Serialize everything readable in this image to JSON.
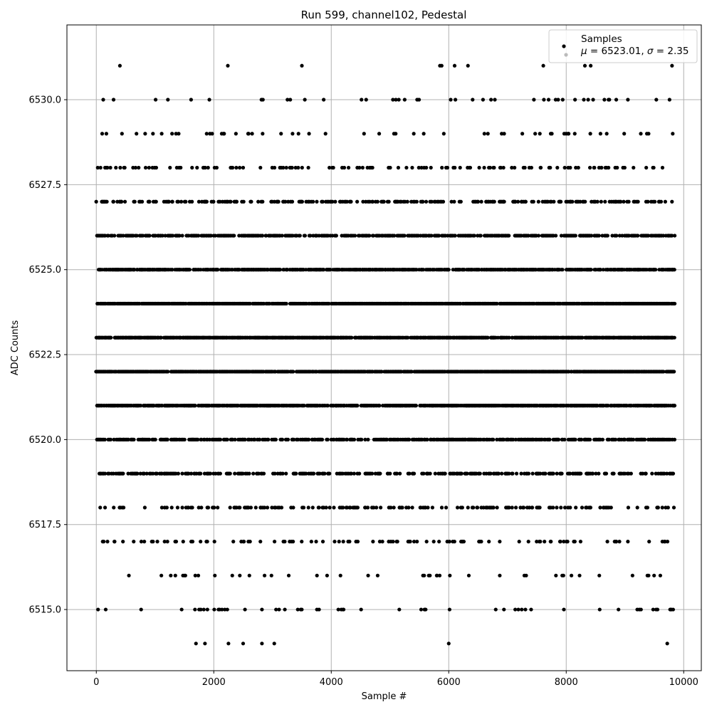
{
  "chart_data": {
    "type": "scatter",
    "title": "Run 599, channel102, Pedestal",
    "xlabel": "Sample #",
    "ylabel": "ADC Counts",
    "xlim": [
      -500,
      10300
    ],
    "ylim": [
      6513.2,
      6532.2
    ],
    "x_ticks": [
      0,
      2000,
      4000,
      6000,
      8000,
      10000
    ],
    "x_tick_labels": [
      "0",
      "2000",
      "4000",
      "6000",
      "8000",
      "10000"
    ],
    "y_ticks": [
      6515.0,
      6517.5,
      6520.0,
      6522.5,
      6525.0,
      6527.5,
      6530.0
    ],
    "y_tick_labels": [
      "6515.0",
      "6517.5",
      "6520.0",
      "6522.5",
      "6525.0",
      "6527.5",
      "6530.0"
    ],
    "grid": true,
    "legend_position": "top-right",
    "legend": {
      "series_label": "Samples",
      "stats_label_parts": [
        "μ",
        " = 6523.01, ",
        "σ",
        " = 2.35"
      ]
    },
    "series": [
      {
        "name": "Samples",
        "color": "#000000",
        "level_densities": [
          {
            "y": 6514,
            "fraction": 0.0012
          },
          {
            "y": 6515,
            "fraction": 0.0045
          },
          {
            "y": 6516,
            "fraction": 0.0085
          },
          {
            "y": 6517,
            "fraction": 0.017
          },
          {
            "y": 6518,
            "fraction": 0.035
          },
          {
            "y": 6519,
            "fraction": 0.06
          },
          {
            "y": 6520,
            "fraction": 0.1
          },
          {
            "y": 6521,
            "fraction": 0.135
          },
          {
            "y": 6522,
            "fraction": 0.16
          },
          {
            "y": 6523,
            "fraction": 0.165
          },
          {
            "y": 6524,
            "fraction": 0.16
          },
          {
            "y": 6525,
            "fraction": 0.13
          },
          {
            "y": 6526,
            "fraction": 0.09
          },
          {
            "y": 6527,
            "fraction": 0.05
          },
          {
            "y": 6528,
            "fraction": 0.025
          },
          {
            "y": 6529,
            "fraction": 0.01
          },
          {
            "y": 6530,
            "fraction": 0.0045
          },
          {
            "y": 6531,
            "fraction": 0.0012
          }
        ],
        "x_range": [
          0,
          9850
        ],
        "n_samples": 9850,
        "points": [
          {
            "x": 1850,
            "y": 6514
          },
          {
            "x": 2250,
            "y": 6514
          },
          {
            "x": 2500,
            "y": 6514
          },
          {
            "x": 2820,
            "y": 6514
          },
          {
            "x": 3030,
            "y": 6514
          },
          {
            "x": 6000,
            "y": 6514
          },
          {
            "x": 9720,
            "y": 6514
          },
          {
            "x": 3500,
            "y": 6531
          },
          {
            "x": 5850,
            "y": 6531
          },
          {
            "x": 5880,
            "y": 6531
          },
          {
            "x": 6100,
            "y": 6531
          },
          {
            "x": 7610,
            "y": 6531
          },
          {
            "x": 1010,
            "y": 6530
          },
          {
            "x": 3550,
            "y": 6530
          },
          {
            "x": 5050,
            "y": 6530
          },
          {
            "x": 5100,
            "y": 6530
          },
          {
            "x": 5150,
            "y": 6530
          },
          {
            "x": 5250,
            "y": 6530
          },
          {
            "x": 6720,
            "y": 6530
          },
          {
            "x": 7450,
            "y": 6530
          },
          {
            "x": 7620,
            "y": 6530
          },
          {
            "x": 7700,
            "y": 6530
          },
          {
            "x": 7820,
            "y": 6530
          },
          {
            "x": 7940,
            "y": 6530
          },
          {
            "x": 8150,
            "y": 6530
          },
          {
            "x": 8300,
            "y": 6530
          },
          {
            "x": 8650,
            "y": 6530
          },
          {
            "x": 8720,
            "y": 6530
          },
          {
            "x": 9050,
            "y": 6530
          },
          {
            "x": 30,
            "y": 6515
          },
          {
            "x": 160,
            "y": 6515
          },
          {
            "x": 1680,
            "y": 6515
          },
          {
            "x": 1750,
            "y": 6515
          },
          {
            "x": 1830,
            "y": 6515
          },
          {
            "x": 2080,
            "y": 6515
          },
          {
            "x": 2140,
            "y": 6515
          },
          {
            "x": 2230,
            "y": 6515
          },
          {
            "x": 2820,
            "y": 6515
          },
          {
            "x": 3060,
            "y": 6515
          },
          {
            "x": 3210,
            "y": 6515
          },
          {
            "x": 3430,
            "y": 6515
          },
          {
            "x": 3480,
            "y": 6515
          },
          {
            "x": 4170,
            "y": 6515
          },
          {
            "x": 4210,
            "y": 6515
          },
          {
            "x": 5530,
            "y": 6515
          },
          {
            "x": 6800,
            "y": 6515
          },
          {
            "x": 6940,
            "y": 6515
          },
          {
            "x": 8890,
            "y": 6515
          },
          {
            "x": 9480,
            "y": 6515
          },
          {
            "x": 9530,
            "y": 6515
          },
          {
            "x": 9780,
            "y": 6515
          },
          {
            "x": 9820,
            "y": 6515
          }
        ]
      }
    ]
  }
}
